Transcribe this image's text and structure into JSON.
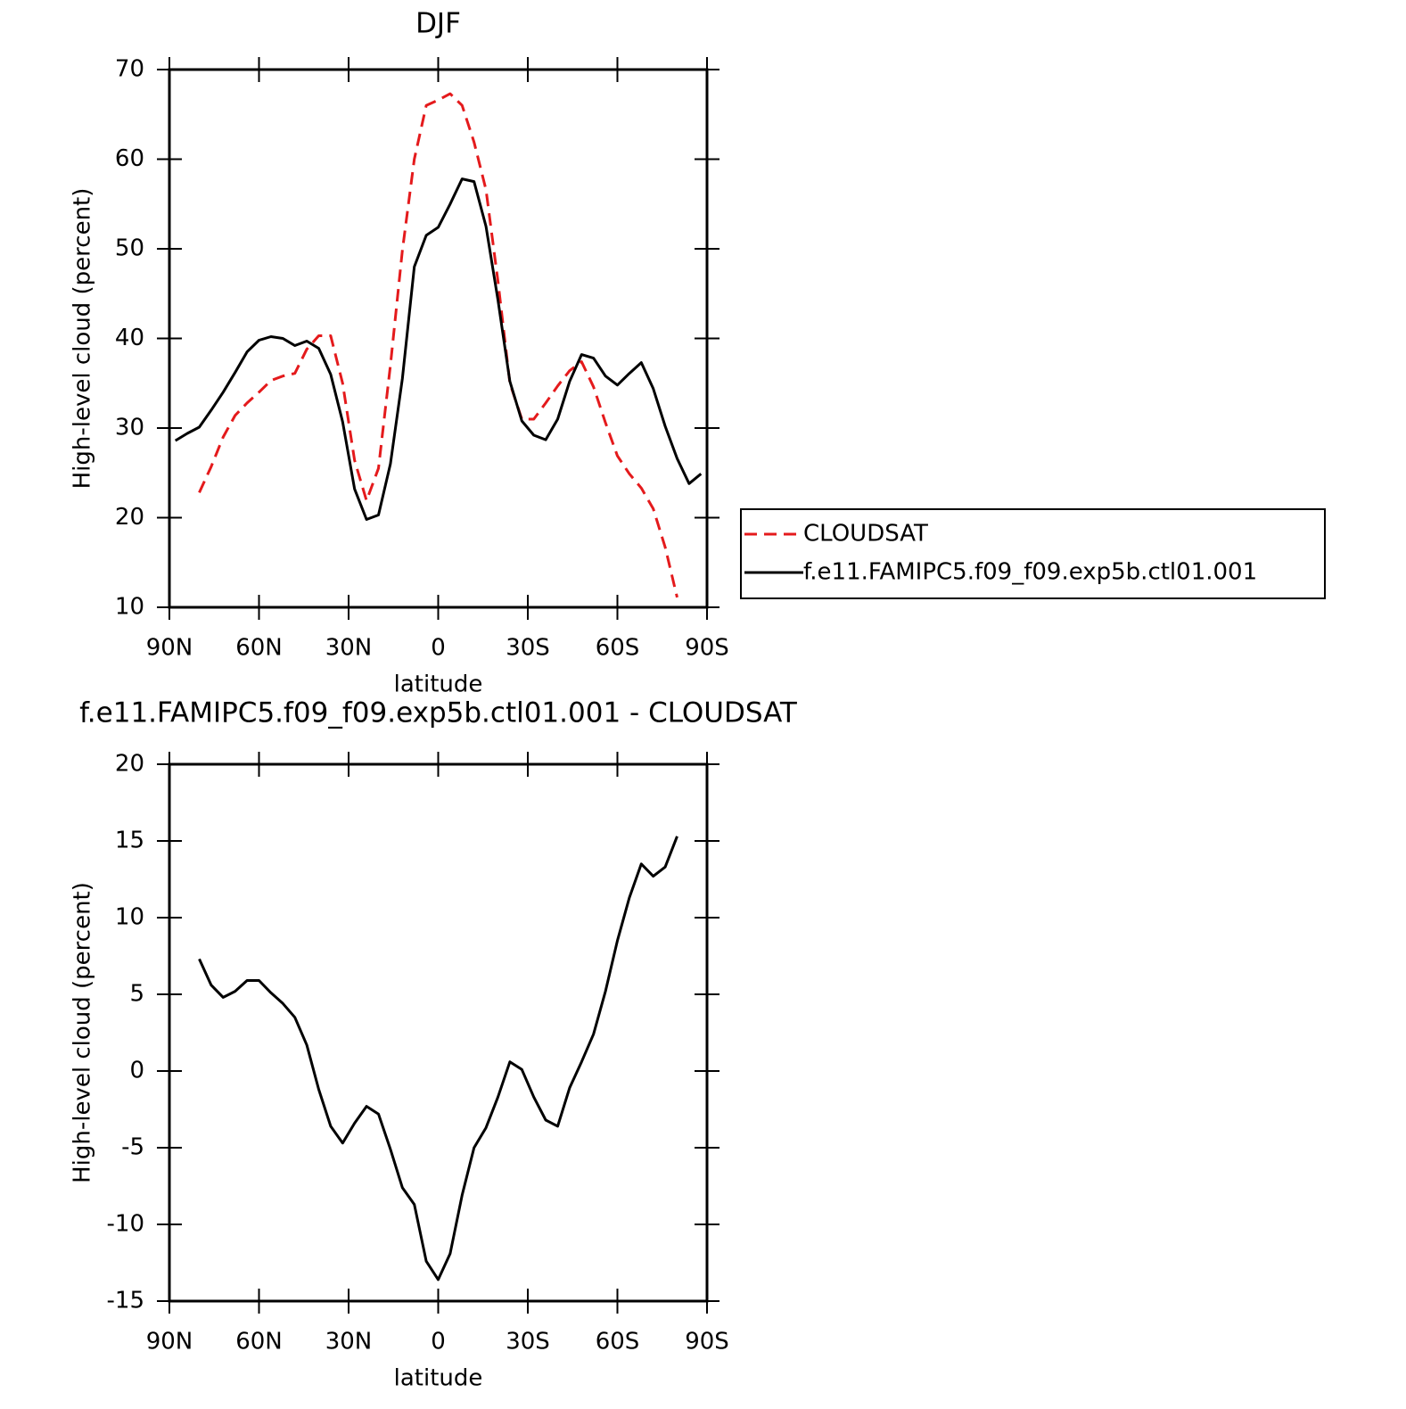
{
  "chart_data": [
    {
      "type": "line",
      "title": "DJF",
      "xlabel": "latitude",
      "ylabel": "High-level cloud (percent)",
      "x": [
        88,
        84,
        80,
        76,
        72,
        68,
        64,
        60,
        56,
        52,
        48,
        44,
        40,
        36,
        32,
        28,
        24,
        20,
        16,
        12,
        8,
        4,
        0,
        -4,
        -8,
        -12,
        -16,
        -20,
        -24,
        -28,
        -32,
        -36,
        -40,
        -44,
        -48,
        -52,
        -56,
        -60,
        -64,
        -68,
        -72,
        -76,
        -80,
        -84,
        -88
      ],
      "series": [
        {
          "name": "CLOUDSAT",
          "color": "#e41a1c",
          "linestyle": "dashed",
          "values": [
            null,
            null,
            22.8,
            25.7,
            29,
            31.4,
            32.8,
            34,
            35.3,
            35.8,
            36.1,
            38.8,
            40.3,
            40.3,
            35,
            26.4,
            21.9,
            25.5,
            37,
            49.8,
            60,
            66,
            66.6,
            67.3,
            66,
            61.9,
            56.6,
            46.4,
            35,
            31,
            31,
            32.8,
            34.7,
            36.4,
            37.4,
            34.6,
            30.6,
            26.9,
            24.9,
            23.3,
            21,
            16.7,
            11.1,
            null,
            null
          ]
        },
        {
          "name": "f.e11.FAMIPC5.f09_f09.exp5b.ctl01.001",
          "color": "#000000",
          "linestyle": "solid",
          "values": [
            28.6,
            29.4,
            30.1,
            32,
            34,
            36.2,
            38.5,
            39.8,
            40.2,
            40,
            39.2,
            39.7,
            38.9,
            36,
            30.7,
            23.2,
            19.8,
            20.3,
            26,
            35.5,
            48,
            51.5,
            52.4,
            55,
            57.8,
            57.5,
            52.5,
            44.3,
            35.2,
            30.8,
            29.2,
            28.7,
            31,
            35.2,
            38.2,
            37.8,
            35.8,
            34.8,
            36.1,
            37.3,
            34.4,
            30.2,
            26.6,
            23.8,
            24.9
          ]
        }
      ],
      "xlim": [
        90,
        -90
      ],
      "xticks": [
        {
          "value": 90,
          "label": "90N"
        },
        {
          "value": 60,
          "label": "60N"
        },
        {
          "value": 30,
          "label": "30N"
        },
        0,
        {
          "value": -30,
          "label": "30S"
        },
        {
          "value": -60,
          "label": "60S"
        },
        {
          "value": -90,
          "label": "90S"
        }
      ],
      "ylim": [
        10,
        70
      ],
      "yticks": [
        10,
        20,
        30,
        40,
        50,
        60,
        70
      ],
      "legend": "right"
    },
    {
      "type": "line",
      "title": "f.e11.FAMIPC5.f09_f09.exp5b.ctl01.001 - CLOUDSAT",
      "xlabel": "latitude",
      "ylabel": "High-level cloud (percent)",
      "x": [
        88,
        84,
        80,
        76,
        72,
        68,
        64,
        60,
        56,
        52,
        48,
        44,
        40,
        36,
        32,
        28,
        24,
        20,
        16,
        12,
        8,
        4,
        0,
        -4,
        -8,
        -12,
        -16,
        -20,
        -24,
        -28,
        -32,
        -36,
        -40,
        -44,
        -48,
        -52,
        -56,
        -60,
        -64,
        -68,
        -72,
        -76,
        -80,
        -84,
        -88
      ],
      "color": "#000000",
      "values": [
        null,
        null,
        7.3,
        5.6,
        4.8,
        5.2,
        5.9,
        5.9,
        5.1,
        4.4,
        3.5,
        1.7,
        -1.2,
        -3.6,
        -4.7,
        -3.4,
        -2.3,
        -2.8,
        -5.1,
        -7.6,
        -8.7,
        -12.4,
        -13.6,
        -11.9,
        -8.1,
        -5,
        -3.7,
        -1.7,
        0.6,
        0.1,
        -1.7,
        -3.2,
        -3.6,
        -1.1,
        0.6,
        2.4,
        5.2,
        8.5,
        11.3,
        13.5,
        12.7,
        13.3,
        15.3,
        null,
        null
      ],
      "xlim": [
        90,
        -90
      ],
      "xticks": [
        {
          "value": 90,
          "label": "90N"
        },
        {
          "value": 60,
          "label": "60N"
        },
        {
          "value": 30,
          "label": "30N"
        },
        0,
        {
          "value": -30,
          "label": "30S"
        },
        {
          "value": -60,
          "label": "60S"
        },
        {
          "value": -90,
          "label": "90S"
        }
      ],
      "ylim": [
        -15,
        20
      ],
      "yticks": [
        -15,
        -10,
        -5,
        0,
        5,
        10,
        15,
        20
      ]
    }
  ]
}
